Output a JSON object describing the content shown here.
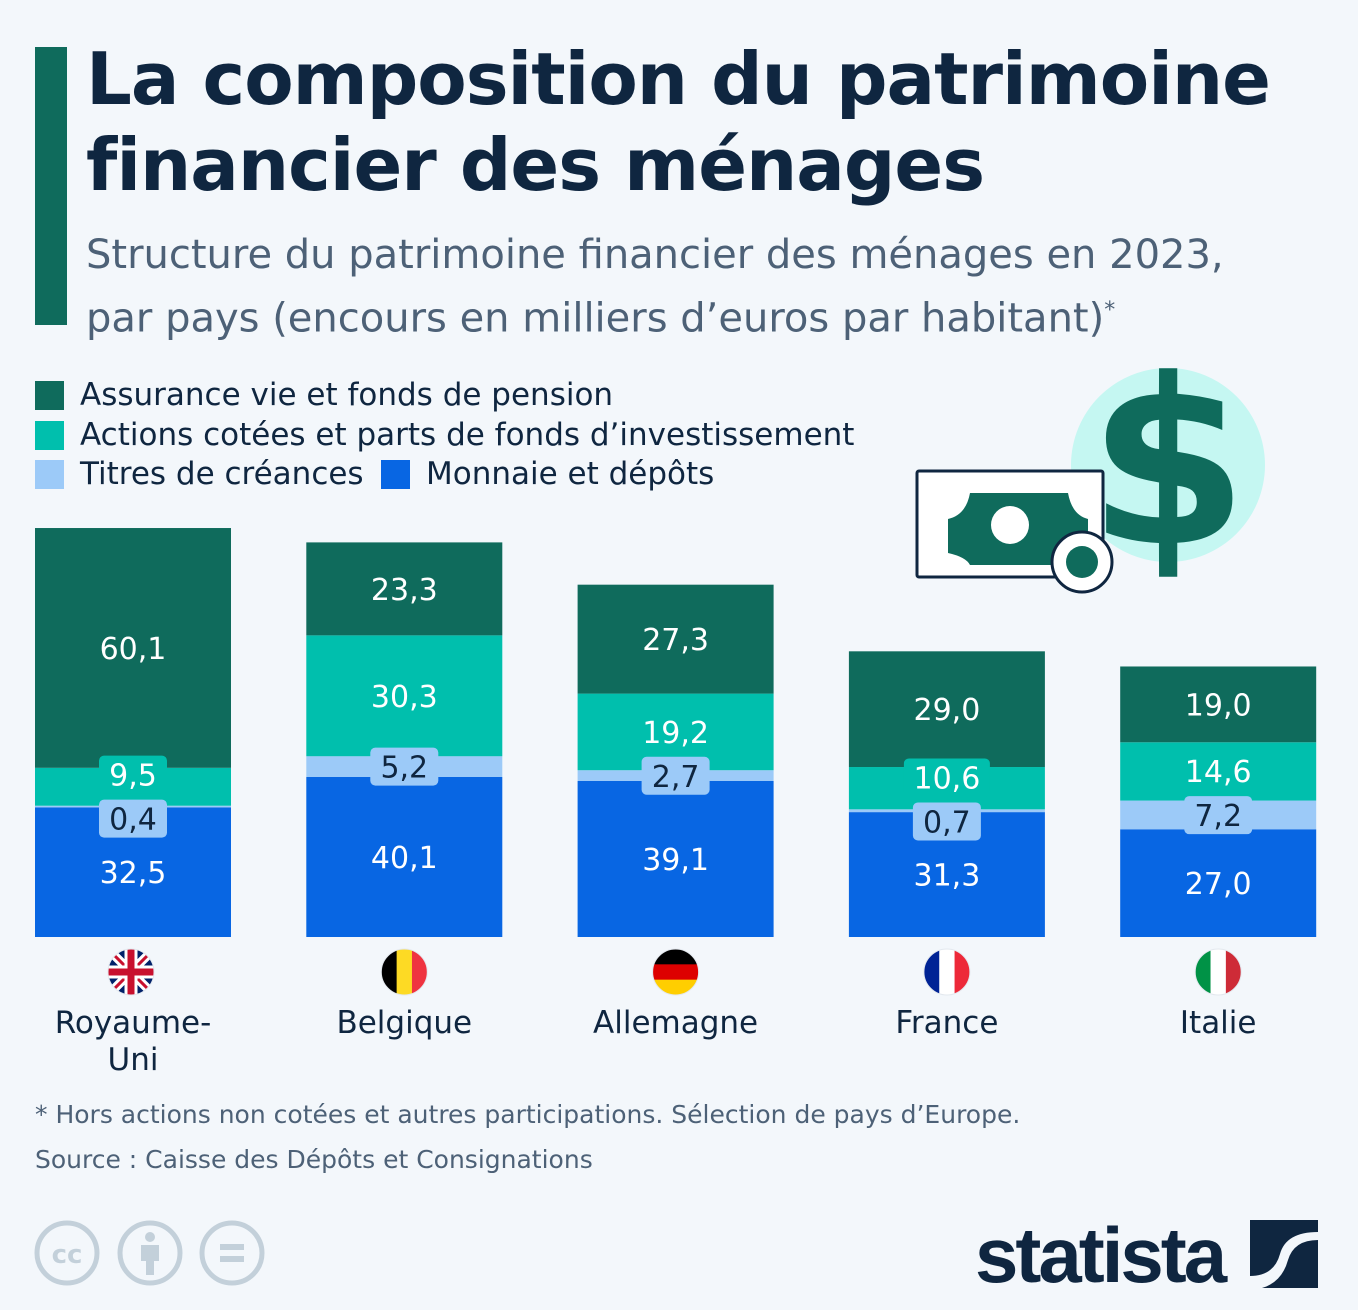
{
  "title_line1": "La composition du patrimoine",
  "title_line2": "financier des ménages",
  "subtitle_line1": "Structure du patrimoine financier des ménages en 2023,",
  "subtitle_line2": "par pays (encours en milliers d’euros par habitant)",
  "subtitle_mark": "*",
  "note": "* Hors actions non cotées et autres participations. Sélection de pays d’Europe.",
  "source": "Source : Caisse des Dépôts et Consignations",
  "brand": "statista",
  "icons": [
    "cc-icon",
    "attribution-icon",
    "no-derivatives-icon",
    "money-bill-icon",
    "dollar-icon"
  ],
  "chart_data": {
    "type": "bar",
    "stacked": true,
    "categories": [
      "Royaume-Uni",
      "Belgique",
      "Allemagne",
      "France",
      "Italie"
    ],
    "flags": [
      "uk-flag-icon",
      "belgium-flag-icon",
      "germany-flag-icon",
      "france-flag-icon",
      "italy-flag-icon"
    ],
    "legend_position": "top-left",
    "grid": false,
    "series": [
      {
        "name": "Monnaie et dépôts",
        "color": "#0866e3",
        "values": [
          32.5,
          40.1,
          39.1,
          31.3,
          27.0
        ],
        "labels": [
          "32,5",
          "40,1",
          "39,1",
          "31,3",
          "27,0"
        ]
      },
      {
        "name": "Titres de créances",
        "color": "#9ccaf8",
        "values": [
          0.4,
          5.2,
          2.7,
          0.7,
          7.2
        ],
        "labels": [
          "0,4",
          "5,2",
          "2,7",
          "0,7",
          "7,2"
        ]
      },
      {
        "name": "Actions cotées et parts de fonds d’investissement",
        "color": "#00bfad",
        "values": [
          9.5,
          30.3,
          19.2,
          10.6,
          14.6
        ],
        "labels": [
          "9,5",
          "30,3",
          "19,2",
          "10,6",
          "14,6"
        ]
      },
      {
        "name": "Assurance vie et fonds de pension",
        "color": "#0f6b5c",
        "values": [
          60.1,
          23.3,
          27.3,
          29.0,
          19.0
        ],
        "labels": [
          "60,1",
          "23,3",
          "27,3",
          "29,0",
          "19,0"
        ]
      }
    ]
  }
}
